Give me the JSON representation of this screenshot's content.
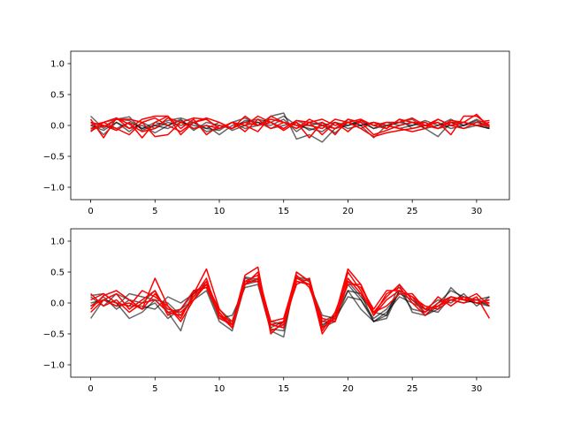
{
  "chart_data": [
    {
      "type": "line",
      "title": "",
      "xlabel": "",
      "ylabel": "",
      "xlim": [
        -1.55,
        32.55
      ],
      "ylim": [
        -1.2,
        1.2
      ],
      "xticks": [
        0,
        5,
        10,
        15,
        20,
        25,
        30
      ],
      "yticks": [
        -1.0,
        -0.5,
        0.0,
        0.5,
        1.0
      ],
      "xtick_labels": [
        "0",
        "5",
        "10",
        "15",
        "20",
        "25",
        "30"
      ],
      "ytick_labels": [
        "−1.0",
        "−0.5",
        "0.0",
        "0.5",
        "1.0"
      ],
      "grid": false,
      "series": [
        {
          "color": "#000000",
          "opacity": 0.6,
          "values": [
            0.15,
            -0.05,
            0.1,
            0.14,
            -0.08,
            0.0,
            0.08,
            0.12,
            0.05,
            -0.1,
            -0.05,
            0.05,
            0.12,
            0.0,
            0.15,
            0.2,
            -0.22,
            -0.15,
            -0.27,
            -0.05,
            0.1,
            0.0,
            -0.2,
            0.0,
            0.05,
            0.1,
            -0.05,
            -0.18,
            0.05,
            0.0,
            0.1,
            0.0
          ]
        },
        {
          "color": "#000000",
          "opacity": 0.6,
          "values": [
            0.05,
            -0.15,
            0.05,
            -0.05,
            0.0,
            -0.12,
            0.0,
            0.08,
            -0.05,
            0.0,
            -0.15,
            0.0,
            0.05,
            0.1,
            0.05,
            0.15,
            0.0,
            -0.05,
            -0.1,
            0.05,
            0.0,
            0.08,
            -0.05,
            0.0,
            0.05,
            0.0,
            0.08,
            0.0,
            0.1,
            0.0,
            0.05,
            0.0
          ]
        },
        {
          "color": "#000000",
          "opacity": 0.6,
          "values": [
            -0.05,
            0.05,
            0.1,
            0.08,
            -0.05,
            0.05,
            0.0,
            0.1,
            -0.08,
            0.05,
            0.0,
            -0.05,
            0.08,
            0.05,
            0.0,
            0.1,
            -0.1,
            0.05,
            0.0,
            -0.12,
            0.05,
            0.0,
            0.05,
            -0.05,
            0.1,
            -0.05,
            0.0,
            0.05,
            -0.05,
            0.0,
            0.08,
            -0.05
          ]
        },
        {
          "color": "#000000",
          "opacity": 0.6,
          "values": [
            0.0,
            -0.08,
            0.05,
            -0.1,
            0.05,
            -0.05,
            0.05,
            0.0,
            0.05,
            -0.05,
            0.05,
            -0.08,
            0.0,
            0.05,
            -0.05,
            0.0,
            0.05,
            -0.08,
            0.0,
            0.05,
            -0.05,
            0.0,
            0.05,
            0.0,
            -0.05,
            0.0,
            0.05,
            -0.05,
            0.0,
            0.05,
            0.0,
            -0.05
          ]
        },
        {
          "color": "#000000",
          "opacity": 0.6,
          "values": [
            -0.08,
            0.0,
            -0.05,
            0.05,
            -0.05,
            0.0,
            -0.05,
            0.05,
            0.0,
            -0.05,
            -0.08,
            0.05,
            -0.05,
            0.0,
            0.05,
            -0.05,
            0.08,
            0.0,
            0.05,
            -0.05,
            0.0,
            0.05,
            -0.05,
            0.05,
            0.0,
            0.05,
            -0.05,
            0.0,
            0.05,
            -0.05,
            0.0,
            -0.05
          ]
        },
        {
          "color": "#ff0000",
          "opacity": 1,
          "values": [
            0.1,
            -0.2,
            0.12,
            -0.05,
            0.1,
            0.15,
            0.15,
            -0.05,
            0.1,
            -0.15,
            0.0,
            -0.05,
            0.15,
            0.0,
            0.05,
            -0.08,
            0.05,
            -0.2,
            0.05,
            -0.15,
            0.1,
            0.05,
            -0.15,
            -0.08,
            0.0,
            0.05,
            0.0,
            0.05,
            -0.15,
            0.15,
            0.15,
            0.0
          ]
        },
        {
          "color": "#ff0000",
          "opacity": 1,
          "values": [
            0.0,
            0.05,
            0.12,
            0.02,
            -0.1,
            -0.05,
            0.12,
            0.05,
            0.12,
            0.1,
            -0.05,
            0.05,
            -0.1,
            0.1,
            -0.05,
            0.05,
            -0.05,
            0.1,
            0.0,
            -0.05,
            0.05,
            -0.05,
            -0.18,
            -0.12,
            -0.08,
            -0.05,
            0.0,
            0.1,
            0.0,
            -0.05,
            0.05,
            0.08
          ]
        },
        {
          "color": "#ff0000",
          "opacity": 1,
          "values": [
            -0.05,
            -0.02,
            0.1,
            0.1,
            0.05,
            0.12,
            0.0,
            -0.1,
            0.05,
            0.12,
            0.05,
            -0.05,
            0.05,
            0.0,
            0.1,
            0.05,
            -0.05,
            0.05,
            0.1,
            0.0,
            0.05,
            0.1,
            0.0,
            0.05,
            0.05,
            0.12,
            0.0,
            -0.05,
            0.08,
            0.05,
            0.0,
            0.05
          ]
        },
        {
          "color": "#ff0000",
          "opacity": 1,
          "values": [
            0.05,
            0.0,
            -0.08,
            0.05,
            -0.2,
            0.05,
            0.15,
            -0.15,
            0.05,
            0.1,
            -0.05,
            0.05,
            0.0,
            0.15,
            0.05,
            -0.05,
            0.08,
            0.05,
            -0.15,
            0.05,
            -0.1,
            0.08,
            0.0,
            -0.05,
            0.1,
            0.05,
            0.05,
            -0.05,
            0.05,
            0.05,
            0.0,
            0.0
          ]
        },
        {
          "color": "#ff0000",
          "opacity": 1,
          "values": [
            -0.1,
            0.05,
            -0.05,
            -0.15,
            0.05,
            -0.18,
            -0.15,
            0.05,
            -0.05,
            0.0,
            -0.05,
            0.05,
            0.0,
            -0.1,
            0.15,
            0.05,
            0.0,
            0.0,
            -0.05,
            0.1,
            0.05,
            -0.05,
            0.05,
            0.0,
            -0.05,
            -0.1,
            -0.05,
            0.1,
            0.0,
            0.05,
            0.18,
            -0.03
          ]
        }
      ]
    },
    {
      "type": "line",
      "title": "",
      "xlabel": "",
      "ylabel": "",
      "xlim": [
        -1.55,
        32.55
      ],
      "ylim": [
        -1.2,
        1.2
      ],
      "xticks": [
        0,
        5,
        10,
        15,
        20,
        25,
        30
      ],
      "yticks": [
        -1.0,
        -0.5,
        0.0,
        0.5,
        1.0
      ],
      "xtick_labels": [
        "0",
        "5",
        "10",
        "15",
        "20",
        "25",
        "30"
      ],
      "ytick_labels": [
        "−1.0",
        "−0.5",
        "0.0",
        "0.5",
        "1.0"
      ],
      "grid": false,
      "series": [
        {
          "color": "#000000",
          "opacity": 0.6,
          "values": [
            -0.25,
            0.05,
            0.0,
            -0.25,
            -0.15,
            0.05,
            -0.15,
            -0.45,
            0.2,
            0.25,
            -0.25,
            -0.2,
            0.25,
            0.3,
            -0.45,
            -0.55,
            0.5,
            0.35,
            -0.35,
            -0.25,
            0.1,
            0.05,
            -0.3,
            -0.2,
            0.3,
            -0.15,
            -0.2,
            -0.1,
            0.25,
            0.05,
            0.0,
            -0.05
          ]
        },
        {
          "color": "#000000",
          "opacity": 0.6,
          "values": [
            0.1,
            -0.05,
            0.15,
            0.05,
            0.0,
            0.2,
            -0.15,
            -0.1,
            0.15,
            0.3,
            -0.1,
            -0.3,
            0.4,
            0.35,
            -0.35,
            -0.4,
            0.4,
            0.35,
            -0.3,
            -0.2,
            0.3,
            0.05,
            -0.25,
            -0.1,
            0.15,
            0.05,
            -0.1,
            0.05,
            0.0,
            0.15,
            -0.05,
            0.1
          ]
        },
        {
          "color": "#000000",
          "opacity": 0.6,
          "values": [
            0.0,
            0.05,
            -0.05,
            0.15,
            0.1,
            0.05,
            0.0,
            -0.2,
            0.1,
            0.3,
            -0.2,
            -0.35,
            0.3,
            0.4,
            -0.3,
            -0.35,
            0.35,
            0.3,
            -0.2,
            -0.25,
            0.35,
            0.1,
            -0.15,
            -0.2,
            0.2,
            -0.1,
            -0.15,
            0.0,
            0.2,
            0.1,
            0.05,
            -0.05
          ]
        },
        {
          "color": "#000000",
          "opacity": 0.6,
          "values": [
            -0.05,
            0.1,
            -0.1,
            0.05,
            -0.1,
            0.0,
            -0.25,
            -0.1,
            0.05,
            0.2,
            -0.3,
            -0.45,
            0.3,
            0.35,
            -0.4,
            -0.3,
            0.3,
            0.4,
            -0.4,
            -0.3,
            0.2,
            0.15,
            -0.3,
            -0.15,
            0.1,
            0.0,
            -0.1,
            -0.15,
            0.1,
            0.05,
            0.0,
            0.0
          ]
        },
        {
          "color": "#000000",
          "opacity": 0.6,
          "values": [
            0.12,
            0.15,
            0.0,
            -0.05,
            -0.05,
            -0.1,
            0.1,
            0.0,
            0.15,
            0.35,
            -0.15,
            -0.4,
            0.42,
            0.38,
            -0.42,
            -0.45,
            0.42,
            0.38,
            -0.38,
            -0.2,
            0.2,
            -0.1,
            -0.3,
            -0.25,
            0.2,
            0.1,
            -0.2,
            -0.05,
            0.05,
            0.0,
            0.05,
            0.1
          ]
        },
        {
          "color": "#ff0000",
          "opacity": 1,
          "values": [
            -0.1,
            0.12,
            0.2,
            0.05,
            -0.1,
            0.4,
            -0.05,
            -0.25,
            0.15,
            0.55,
            -0.1,
            -0.35,
            0.45,
            0.58,
            -0.5,
            -0.3,
            0.5,
            0.35,
            -0.5,
            -0.2,
            0.55,
            0.3,
            -0.2,
            0.15,
            0.25,
            0.0,
            -0.2,
            0.0,
            0.1,
            0.05,
            0.15,
            -0.05
          ]
        },
        {
          "color": "#ff0000",
          "opacity": 1,
          "values": [
            0.05,
            0.15,
            0.0,
            -0.05,
            0.2,
            0.1,
            -0.05,
            -0.3,
            0.05,
            0.35,
            -0.15,
            -0.4,
            0.35,
            0.45,
            -0.3,
            -0.25,
            0.45,
            0.25,
            -0.3,
            -0.3,
            0.5,
            0.2,
            -0.2,
            0.05,
            0.2,
            0.1,
            -0.05,
            -0.1,
            0.05,
            0.0,
            0.1,
            -0.25
          ]
        },
        {
          "color": "#ff0000",
          "opacity": 1,
          "values": [
            -0.05,
            0.05,
            0.15,
            -0.1,
            0.05,
            0.2,
            -0.2,
            -0.1,
            0.2,
            0.25,
            -0.2,
            -0.3,
            0.3,
            0.5,
            -0.35,
            -0.3,
            0.3,
            0.4,
            -0.4,
            -0.25,
            0.3,
            0.3,
            -0.15,
            -0.05,
            0.15,
            0.15,
            -0.1,
            -0.05,
            0.1,
            0.05,
            0.05,
            0.0
          ]
        },
        {
          "color": "#ff0000",
          "opacity": 1,
          "values": [
            0.15,
            -0.05,
            0.05,
            -0.15,
            0.0,
            0.05,
            -0.15,
            -0.2,
            0.1,
            0.4,
            -0.25,
            -0.35,
            0.35,
            0.35,
            -0.45,
            -0.35,
            0.4,
            0.3,
            -0.45,
            -0.15,
            0.4,
            0.15,
            -0.15,
            0.1,
            0.3,
            0.05,
            -0.15,
            0.1,
            -0.05,
            0.1,
            0.0,
            0.05
          ]
        },
        {
          "color": "#ff0000",
          "opacity": 1,
          "values": [
            -0.15,
            0.05,
            -0.05,
            0.0,
            -0.1,
            0.15,
            -0.1,
            -0.15,
            0.05,
            0.3,
            -0.2,
            -0.4,
            0.3,
            0.4,
            -0.35,
            -0.4,
            0.35,
            0.3,
            -0.25,
            -0.3,
            0.35,
            0.25,
            -0.1,
            0.2,
            0.2,
            0.1,
            -0.1,
            -0.05,
            0.05,
            0.1,
            0.0,
            0.05
          ]
        }
      ]
    }
  ]
}
